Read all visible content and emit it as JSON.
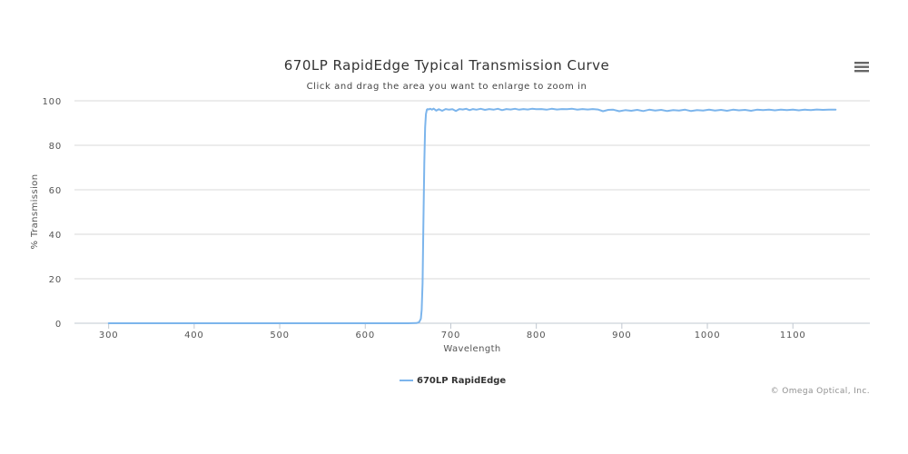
{
  "chart_data": {
    "type": "line",
    "title": "670LP RapidEdge Typical Transmission Curve",
    "subtitle": "Click and drag the area you want to enlarge to zoom in",
    "xlabel": "Wavelength",
    "ylabel": "% Transmission",
    "xlim": [
      260,
      1190
    ],
    "ylim": [
      0,
      100
    ],
    "xticks": [
      300,
      400,
      500,
      600,
      700,
      800,
      900,
      1000,
      1100
    ],
    "yticks": [
      0,
      20,
      40,
      60,
      80,
      100
    ],
    "grid": true,
    "legend_position": "bottom-center",
    "credits": "© Omega Optical, Inc.",
    "series": [
      {
        "name": "670LP RapidEdge",
        "color": "#7cb5ec",
        "x": [
          300,
          400,
          500,
          600,
          650,
          660,
          663,
          665,
          666,
          667,
          668,
          669,
          670,
          671,
          672,
          673,
          674,
          676,
          678,
          680,
          683,
          686,
          690,
          694,
          698,
          702,
          706,
          710,
          714,
          718,
          722,
          726,
          730,
          735,
          740,
          745,
          750,
          755,
          760,
          765,
          770,
          775,
          780,
          785,
          790,
          795,
          800,
          806,
          812,
          818,
          824,
          830,
          836,
          842,
          848,
          854,
          860,
          866,
          872,
          878,
          884,
          890,
          897,
          904,
          911,
          918,
          925,
          932,
          939,
          946,
          953,
          960,
          967,
          974,
          981,
          988,
          995,
          1002,
          1009,
          1016,
          1023,
          1030,
          1037,
          1044,
          1051,
          1058,
          1065,
          1072,
          1079,
          1086,
          1093,
          1100,
          1107,
          1114,
          1121,
          1128,
          1135,
          1142,
          1150
        ],
        "y": [
          0,
          0,
          0,
          0,
          0,
          0.1,
          0.5,
          2,
          6,
          18,
          45,
          72,
          88,
          94,
          96,
          96.3,
          96.1,
          96.4,
          96,
          96.5,
          95.6,
          96.2,
          95.5,
          96.3,
          96,
          96.2,
          95.4,
          96.3,
          96.1,
          96.4,
          95.8,
          96.3,
          96,
          96.4,
          95.9,
          96.3,
          96,
          96.4,
          95.8,
          96.3,
          96.1,
          96.4,
          96,
          96.3,
          96.1,
          96.4,
          96.2,
          96.3,
          96,
          96.4,
          96.1,
          96.3,
          96.2,
          96.4,
          96,
          96.3,
          96.1,
          96.3,
          96.1,
          95.3,
          95.9,
          96,
          95.3,
          95.8,
          95.5,
          95.9,
          95.4,
          96,
          95.6,
          95.9,
          95.4,
          95.8,
          95.6,
          96,
          95.4,
          95.8,
          95.6,
          96,
          95.6,
          95.9,
          95.5,
          96,
          95.7,
          95.9,
          95.5,
          96,
          95.8,
          96,
          95.7,
          96,
          95.8,
          96,
          95.7,
          96,
          95.8,
          96.1,
          95.9,
          96,
          96
        ]
      }
    ]
  }
}
